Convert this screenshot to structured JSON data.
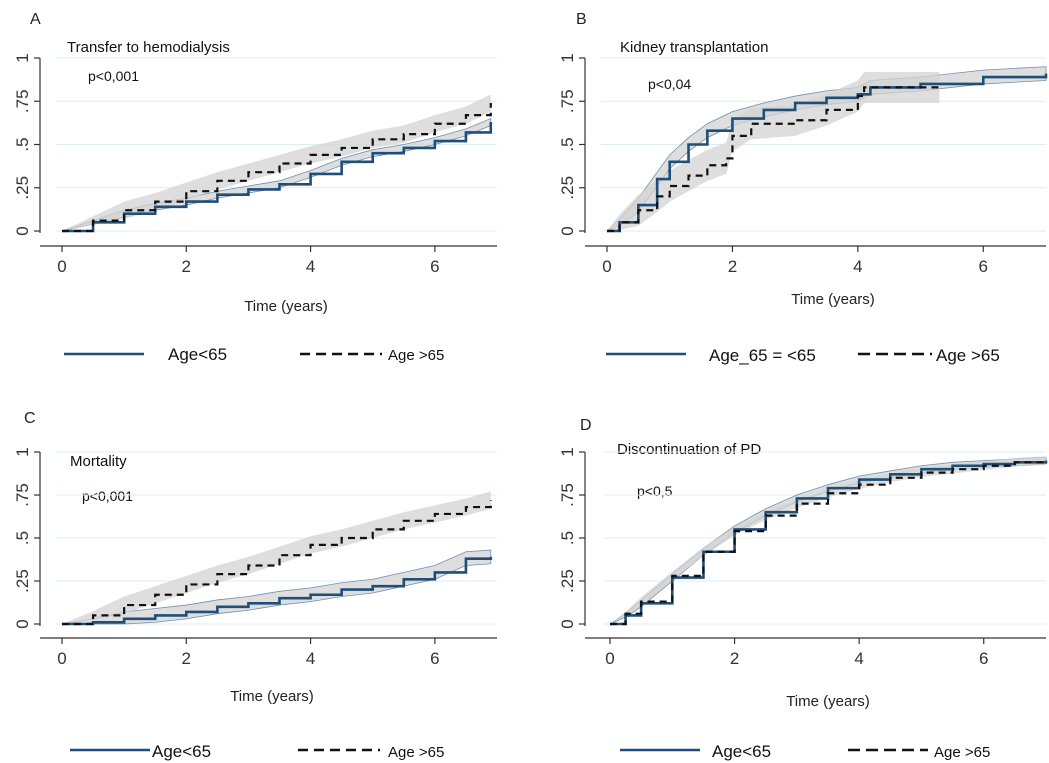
{
  "chart_data": [
    {
      "type": "line",
      "panel": "A",
      "title": "Transfer to hemodialysis",
      "annotation": "p<0,001",
      "xlabel": "Time (years)",
      "ylabel": "",
      "xlim": [
        0,
        7
      ],
      "ylim": [
        0,
        1
      ],
      "xticks": [
        "0",
        "2",
        "4",
        "6"
      ],
      "yticks": [
        0,
        0.25,
        0.5,
        0.75,
        1
      ],
      "ytick_labels": [
        "0",
        ".25",
        ".5",
        ".75",
        "1"
      ],
      "grid": true,
      "legend_position": "bottom",
      "legend": [
        "Age<65",
        "Age >65"
      ],
      "colors": {
        "age_lt65": "#1f4e79",
        "age_gt65": "#111111",
        "ci_fill": "#d3d3d3"
      },
      "series": [
        {
          "name": "Age<65",
          "style": "solid",
          "x": [
            0,
            0.5,
            1,
            1.5,
            2,
            2.5,
            3,
            3.5,
            4,
            4.5,
            5,
            5.5,
            6,
            6.5,
            6.9
          ],
          "y": [
            0,
            0.05,
            0.1,
            0.14,
            0.17,
            0.21,
            0.24,
            0.27,
            0.33,
            0.4,
            0.45,
            0.48,
            0.52,
            0.57,
            0.63
          ],
          "ci_half": 0.02
        },
        {
          "name": "Age >65",
          "style": "dashed",
          "x": [
            0,
            0.5,
            1,
            1.5,
            2,
            2.5,
            3,
            3.5,
            4,
            4.5,
            5,
            5.5,
            6,
            6.5,
            6.9
          ],
          "y": [
            0,
            0.06,
            0.12,
            0.17,
            0.23,
            0.29,
            0.34,
            0.39,
            0.44,
            0.48,
            0.53,
            0.56,
            0.62,
            0.67,
            0.74
          ],
          "ci_half": 0.05
        }
      ]
    },
    {
      "type": "line",
      "panel": "B",
      "title": "Kidney transplantation",
      "annotation": "p<0,04",
      "xlabel": "Time (years)",
      "ylabel": "",
      "xlim": [
        0,
        7
      ],
      "ylim": [
        0,
        1
      ],
      "xticks": [
        "0",
        "2",
        "4",
        "6"
      ],
      "yticks": [
        0,
        0.25,
        0.5,
        0.75,
        1
      ],
      "ytick_labels": [
        "0",
        ".25",
        ".5",
        ".75",
        "1"
      ],
      "grid": true,
      "legend_position": "bottom",
      "legend": [
        "Age_65 = <65",
        "Age >65"
      ],
      "colors": {
        "age_lt65": "#1f4e79",
        "age_gt65": "#111111",
        "ci_fill": "#d3d3d3"
      },
      "series": [
        {
          "name": "Age_65 = <65",
          "style": "solid",
          "x": [
            0,
            0.2,
            0.5,
            0.8,
            1.0,
            1.3,
            1.6,
            2.0,
            2.5,
            3.0,
            3.5,
            4.0,
            4.2,
            5.0,
            6.0,
            7.0
          ],
          "y": [
            0,
            0.05,
            0.15,
            0.3,
            0.4,
            0.5,
            0.58,
            0.65,
            0.7,
            0.74,
            0.77,
            0.79,
            0.83,
            0.85,
            0.89,
            0.91
          ],
          "ci_half": 0.04
        },
        {
          "name": "Age >65",
          "style": "dashed",
          "x": [
            0,
            0.2,
            0.5,
            0.8,
            1.0,
            1.3,
            1.6,
            1.9,
            2.0,
            2.3,
            3.0,
            3.5,
            4.0,
            4.1,
            4.5,
            5.3
          ],
          "y": [
            0,
            0.05,
            0.12,
            0.2,
            0.26,
            0.32,
            0.38,
            0.42,
            0.55,
            0.62,
            0.64,
            0.7,
            0.78,
            0.83,
            0.83,
            0.83
          ],
          "ci_half": 0.09
        }
      ]
    },
    {
      "type": "line",
      "panel": "C",
      "title": "Mortality",
      "annotation": "p<0,001",
      "xlabel": "Time (years)",
      "ylabel": "",
      "xlim": [
        0,
        7
      ],
      "ylim": [
        0,
        1
      ],
      "xticks": [
        "0",
        "2",
        "4",
        "6"
      ],
      "yticks": [
        0,
        0.25,
        0.5,
        0.75,
        1
      ],
      "ytick_labels": [
        "0",
        ".25",
        ".5",
        ".75",
        "1"
      ],
      "grid": true,
      "legend_position": "bottom",
      "legend": [
        "Age<65",
        "Age >65"
      ],
      "colors": {
        "age_lt65": "#1f4e79",
        "age_gt65": "#111111",
        "ci_fill": "#d3d3d3"
      },
      "series": [
        {
          "name": "Age<65",
          "style": "solid",
          "x": [
            0,
            0.5,
            1,
            1.5,
            2,
            2.5,
            3,
            3.5,
            4,
            4.5,
            5,
            5.5,
            6,
            6.5,
            6.9
          ],
          "y": [
            0,
            0.01,
            0.03,
            0.05,
            0.07,
            0.1,
            0.12,
            0.15,
            0.17,
            0.2,
            0.22,
            0.26,
            0.3,
            0.38,
            0.39
          ],
          "ci_half": 0.04
        },
        {
          "name": "Age >65",
          "style": "dashed",
          "x": [
            0,
            0.5,
            1,
            1.5,
            2,
            2.5,
            3,
            3.5,
            4,
            4.5,
            5,
            5.5,
            6,
            6.5,
            6.9
          ],
          "y": [
            0,
            0.05,
            0.11,
            0.17,
            0.23,
            0.29,
            0.34,
            0.4,
            0.46,
            0.5,
            0.55,
            0.6,
            0.64,
            0.68,
            0.72
          ],
          "ci_half": 0.05
        }
      ]
    },
    {
      "type": "line",
      "panel": "D",
      "title": "Discontinuation of PD",
      "annotation": "p<0,5",
      "xlabel": "Time (years)",
      "ylabel": "",
      "xlim": [
        0,
        7
      ],
      "ylim": [
        0,
        1
      ],
      "xticks": [
        "0",
        "2",
        "4",
        "6"
      ],
      "yticks": [
        0,
        0.25,
        0.5,
        0.75,
        1
      ],
      "ytick_labels": [
        "0",
        ".25",
        ".5",
        ".75",
        "1"
      ],
      "grid": true,
      "legend_position": "bottom",
      "legend": [
        "Age<65",
        "Age >65"
      ],
      "colors": {
        "age_lt65": "#1f4e79",
        "age_gt65": "#111111",
        "ci_fill": "#d3d3d3"
      },
      "series": [
        {
          "name": "Age<65",
          "style": "solid",
          "x": [
            0,
            0.25,
            0.5,
            1,
            1.5,
            2,
            2.5,
            3,
            3.5,
            4,
            4.5,
            5,
            5.5,
            6,
            6.5,
            7
          ],
          "y": [
            0,
            0.05,
            0.12,
            0.27,
            0.42,
            0.55,
            0.65,
            0.73,
            0.79,
            0.84,
            0.87,
            0.9,
            0.92,
            0.93,
            0.94,
            0.95
          ],
          "ci_half": 0.02
        },
        {
          "name": "Age >65",
          "style": "dashed",
          "x": [
            0,
            0.25,
            0.5,
            1,
            1.5,
            2,
            2.5,
            3,
            3.5,
            4,
            4.5,
            5,
            5.5,
            6,
            6.5,
            7
          ],
          "y": [
            0,
            0.06,
            0.13,
            0.28,
            0.42,
            0.54,
            0.63,
            0.7,
            0.76,
            0.81,
            0.85,
            0.88,
            0.9,
            0.92,
            0.94,
            0.95
          ],
          "ci_half": 0.025
        }
      ]
    }
  ]
}
